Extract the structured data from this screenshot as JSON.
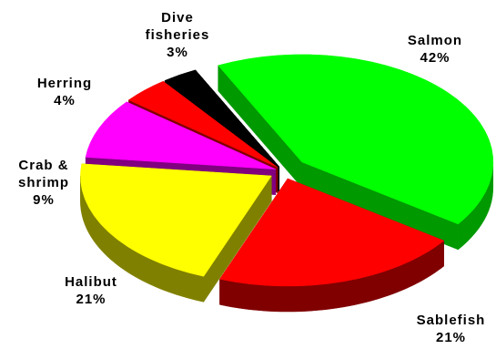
{
  "chart_data": {
    "type": "pie",
    "style": "3d-exploded",
    "slices": [
      {
        "label": "Salmon",
        "value": 42,
        "value_label": "42%",
        "color": "#00ff00",
        "side_color": "#009900"
      },
      {
        "label": "Sablefish",
        "value": 21,
        "value_label": "21%",
        "color": "#ff0000",
        "side_color": "#800000"
      },
      {
        "label": "Halibut",
        "value": 21,
        "value_label": "21%",
        "color": "#ffff00",
        "side_color": "#808000"
      },
      {
        "label": "Crab & shrimp",
        "value": 9,
        "value_label": "9%",
        "color": "#ff00ff",
        "side_color": "#800080"
      },
      {
        "label": "Herring",
        "value": 4,
        "value_label": "4%",
        "color": "#ff0000",
        "side_color": "#800000"
      },
      {
        "label": "Dive fisheries",
        "value": 3,
        "value_label": "3%",
        "color": "#000000",
        "side_color": "#000000"
      }
    ]
  },
  "labels": {
    "salmon": {
      "name": "Salmon",
      "pct": "42%"
    },
    "sablefish": {
      "name": "Sablefish",
      "pct": "21%"
    },
    "halibut": {
      "name": "Halibut",
      "pct": "21%"
    },
    "crab": {
      "name1": "Crab &",
      "name2": "shrimp",
      "pct": "9%"
    },
    "herring": {
      "name": "Herring",
      "pct": "4%"
    },
    "dive": {
      "name1": "Dive",
      "name2": "fisheries",
      "pct": "3%"
    }
  }
}
